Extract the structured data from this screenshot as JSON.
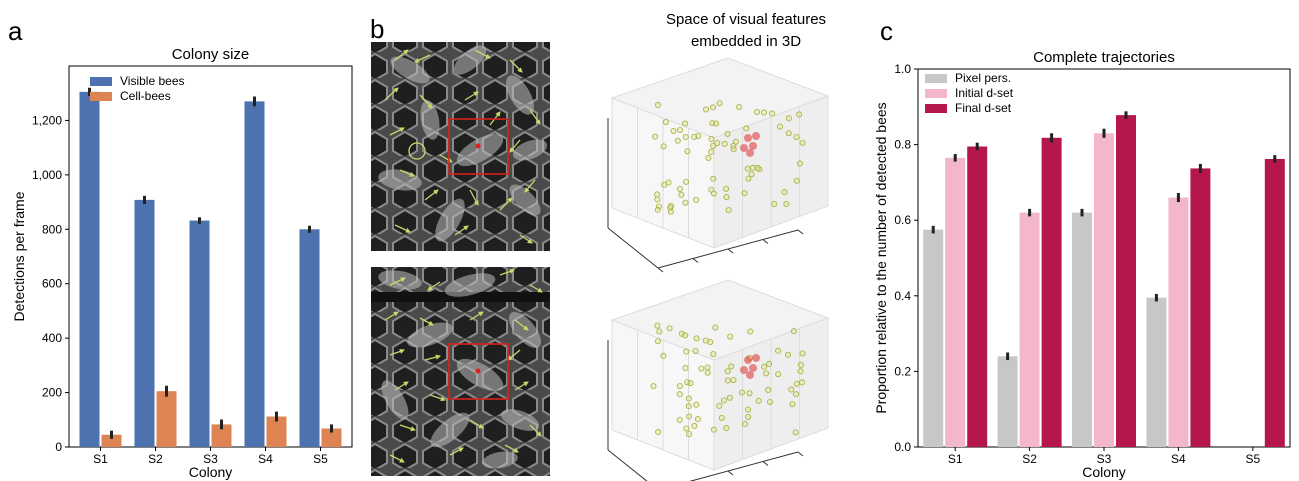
{
  "panels": {
    "a_letter": "a",
    "b_letter": "b",
    "c_letter": "c",
    "b_title_line1": "Space of visual features",
    "b_title_line2": "embedded in 3D"
  },
  "colors": {
    "visible": "#4c72b0",
    "cell": "#dd8452",
    "pixel": "#c7c7c7",
    "initial": "#f4b6cd",
    "final": "#b5174d",
    "feature_point": "#d8e27a",
    "selected_point": "#e0302f",
    "crop_box": "#d8221c",
    "arrow": "#c8d96a"
  },
  "chart_data": [
    {
      "type": "bar",
      "title": "Colony size",
      "xlabel": "Colony",
      "ylabel": "Detections per frame",
      "categories": [
        "S1",
        "S2",
        "S3",
        "S4",
        "S5"
      ],
      "ylim": [
        0,
        1400
      ],
      "yticks": [
        0,
        200,
        400,
        600,
        800,
        1000,
        1200
      ],
      "ytick_labels": [
        "0",
        "200",
        "400",
        "600",
        "800",
        "1,000",
        "1,200"
      ],
      "legend": "top-left",
      "grid": false,
      "series": [
        {
          "name": "Visible bees",
          "values": [
            1305,
            908,
            832,
            1270,
            800
          ],
          "err": [
            15,
            15,
            12,
            18,
            13
          ]
        },
        {
          "name": "Cell-bees",
          "values": [
            45,
            205,
            83,
            112,
            68
          ],
          "err": [
            15,
            20,
            18,
            18,
            15
          ]
        }
      ]
    },
    {
      "type": "bar",
      "title": "Complete trajectories",
      "xlabel": "Colony",
      "ylabel": "Proportion relative to the number of detected bees",
      "categories": [
        "S1",
        "S2",
        "S3",
        "S4",
        "S5"
      ],
      "ylim": [
        0,
        1.0
      ],
      "yticks": [
        0.0,
        0.2,
        0.4,
        0.6,
        0.8,
        1.0
      ],
      "ytick_labels": [
        "0.0",
        "0.2",
        "0.4",
        "0.6",
        "0.8",
        "1.0"
      ],
      "legend": "top-left",
      "grid": false,
      "series": [
        {
          "name": "Pixel pers.",
          "values": [
            0.575,
            0.24,
            0.62,
            0.395,
            null
          ],
          "err": [
            0.01,
            0.01,
            0.01,
            0.01,
            0
          ]
        },
        {
          "name": "Initial d-set",
          "values": [
            0.765,
            0.62,
            0.83,
            0.66,
            null
          ],
          "err": [
            0.01,
            0.01,
            0.012,
            0.012,
            0
          ]
        },
        {
          "name": "Final d-set",
          "values": [
            0.795,
            0.818,
            0.878,
            0.737,
            0.762
          ],
          "err": [
            0.01,
            0.012,
            0.01,
            0.012,
            0.01
          ]
        }
      ]
    }
  ]
}
